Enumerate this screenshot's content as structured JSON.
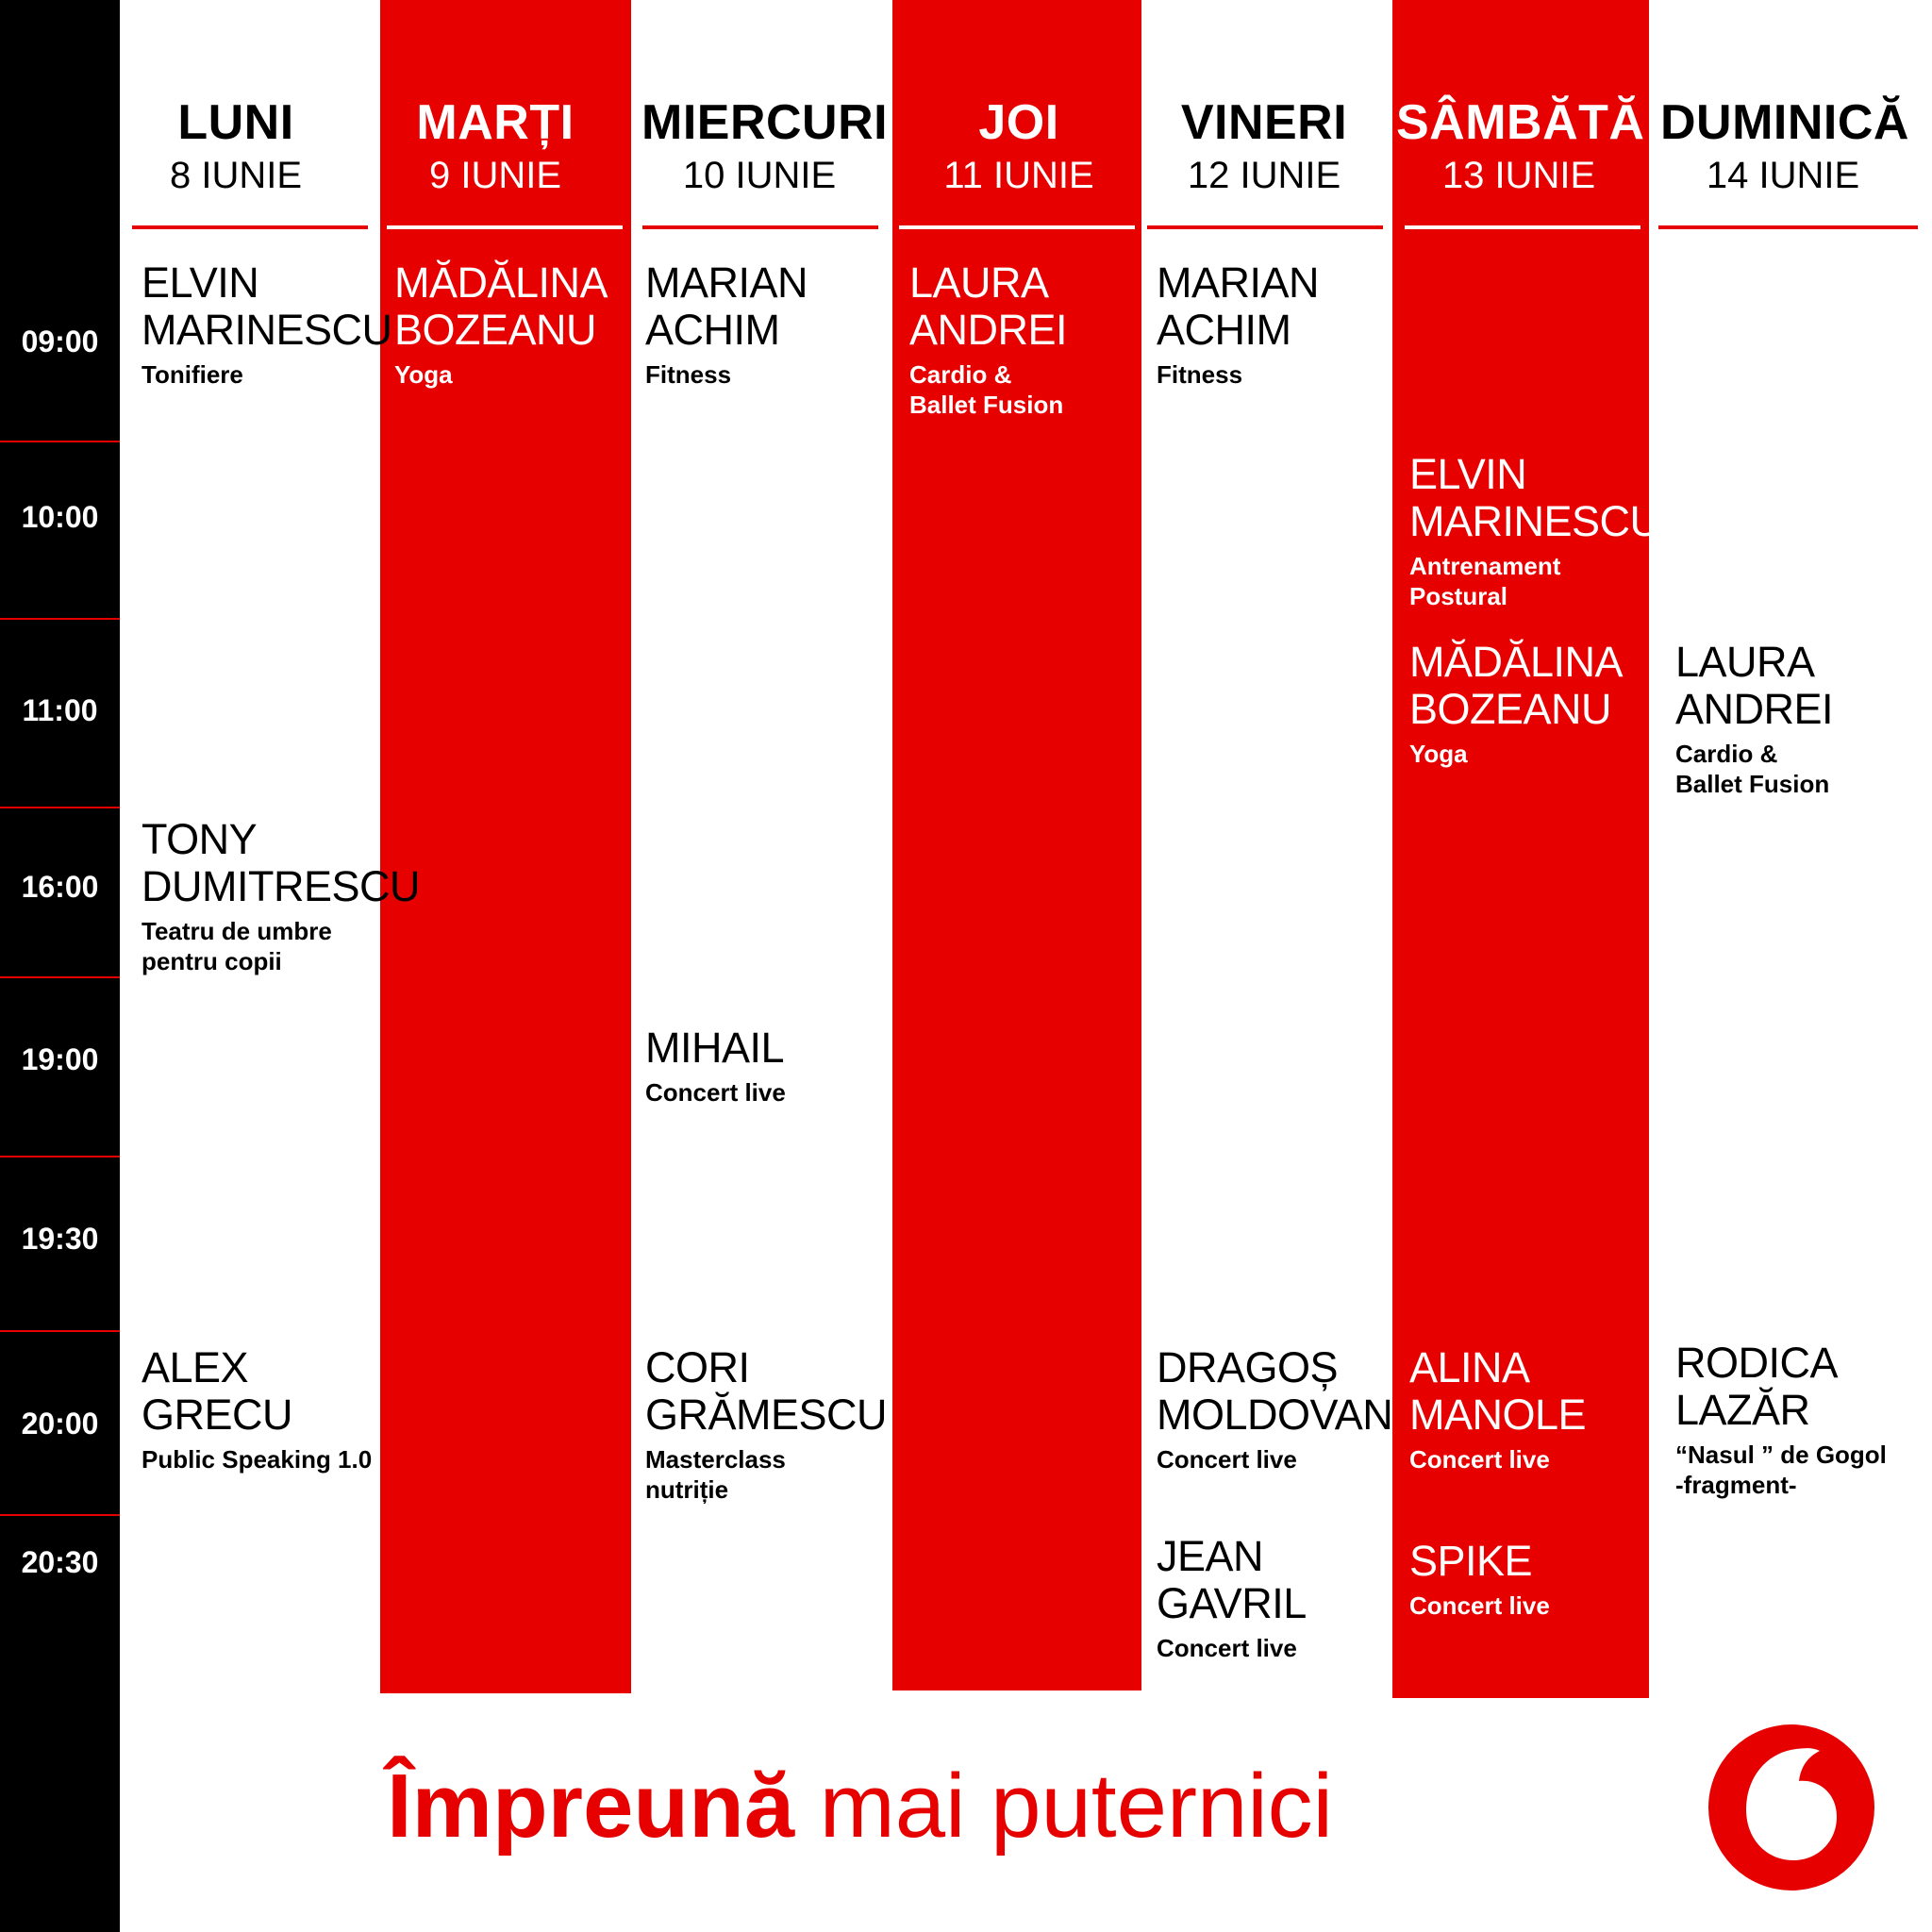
{
  "colors": {
    "accent": "#e60000",
    "time_column": "#000000",
    "background": "#ffffff"
  },
  "times": [
    "09:00",
    "10:00",
    "11:00",
    "16:00",
    "19:00",
    "19:30",
    "20:00",
    "20:30"
  ],
  "days": [
    {
      "name": "LUNI",
      "date": "8 IUNIE",
      "highlighted": false
    },
    {
      "name": "MARȚI",
      "date": "9 IUNIE",
      "highlighted": true
    },
    {
      "name": "MIERCURI",
      "date": "10 IUNIE",
      "highlighted": false
    },
    {
      "name": "JOI",
      "date": "11 IUNIE",
      "highlighted": true
    },
    {
      "name": "VINERI",
      "date": "12 IUNIE",
      "highlighted": false
    },
    {
      "name": "SÂMBĂTĂ",
      "date": "13 IUNIE",
      "highlighted": true
    },
    {
      "name": "DUMINICĂ",
      "date": "14 IUNIE",
      "highlighted": false
    }
  ],
  "events": [
    {
      "day": "LUNI",
      "time": "09:00",
      "name": "ELVIN\nMARINESCU",
      "activity": "Tonifiere"
    },
    {
      "day": "LUNI",
      "time": "16:00",
      "name": "TONY\nDUMITRESCU",
      "activity": "Teatru de umbre\npentru copii"
    },
    {
      "day": "LUNI",
      "time": "20:00",
      "name": "ALEX\nGRECU",
      "activity": "Public Speaking 1.0"
    },
    {
      "day": "MARȚI",
      "time": "09:00",
      "name": "MĂDĂLINA\nBOZEANU",
      "activity": "Yoga"
    },
    {
      "day": "MIERCURI",
      "time": "09:00",
      "name": "MARIAN\nACHIM",
      "activity": "Fitness"
    },
    {
      "day": "MIERCURI",
      "time": "19:00",
      "name": "MIHAIL",
      "activity": "Concert live"
    },
    {
      "day": "MIERCURI",
      "time": "20:00",
      "name": "CORI\nGRĂMESCU",
      "activity": "Masterclass\nnutriție"
    },
    {
      "day": "JOI",
      "time": "09:00",
      "name": "LAURA\nANDREI",
      "activity": "Cardio &\nBallet Fusion"
    },
    {
      "day": "VINERI",
      "time": "09:00",
      "name": "MARIAN\nACHIM",
      "activity": "Fitness"
    },
    {
      "day": "VINERI",
      "time": "20:00",
      "name": "DRAGOȘ\nMOLDOVAN",
      "activity": "Concert live"
    },
    {
      "day": "VINERI",
      "time": "20:30",
      "name": "JEAN\nGAVRIL",
      "activity": "Concert live"
    },
    {
      "day": "SÂMBĂTĂ",
      "time": "10:00",
      "name": "ELVIN\nMARINESCU",
      "activity": "Antrenament\nPostural"
    },
    {
      "day": "SÂMBĂTĂ",
      "time": "11:00",
      "name": "MĂDĂLINA\nBOZEANU",
      "activity": "Yoga"
    },
    {
      "day": "SÂMBĂTĂ",
      "time": "20:00",
      "name": "ALINA\nMANOLE",
      "activity": "Concert live"
    },
    {
      "day": "SÂMBĂTĂ",
      "time": "20:30",
      "name": "SPIKE",
      "activity": "Concert live"
    },
    {
      "day": "DUMINICĂ",
      "time": "11:00",
      "name": "LAURA\nANDREI",
      "activity": "Cardio &\nBallet Fusion"
    },
    {
      "day": "DUMINICĂ",
      "time": "20:00",
      "name": "RODICA\nLAZĂR",
      "activity": "“Nasul ” de Gogol\n-fragment-"
    }
  ],
  "slogan": {
    "bold": "Împreună",
    "rest": " mai puternici"
  },
  "logo": {
    "icon": "vodafone-speechmark-icon"
  }
}
